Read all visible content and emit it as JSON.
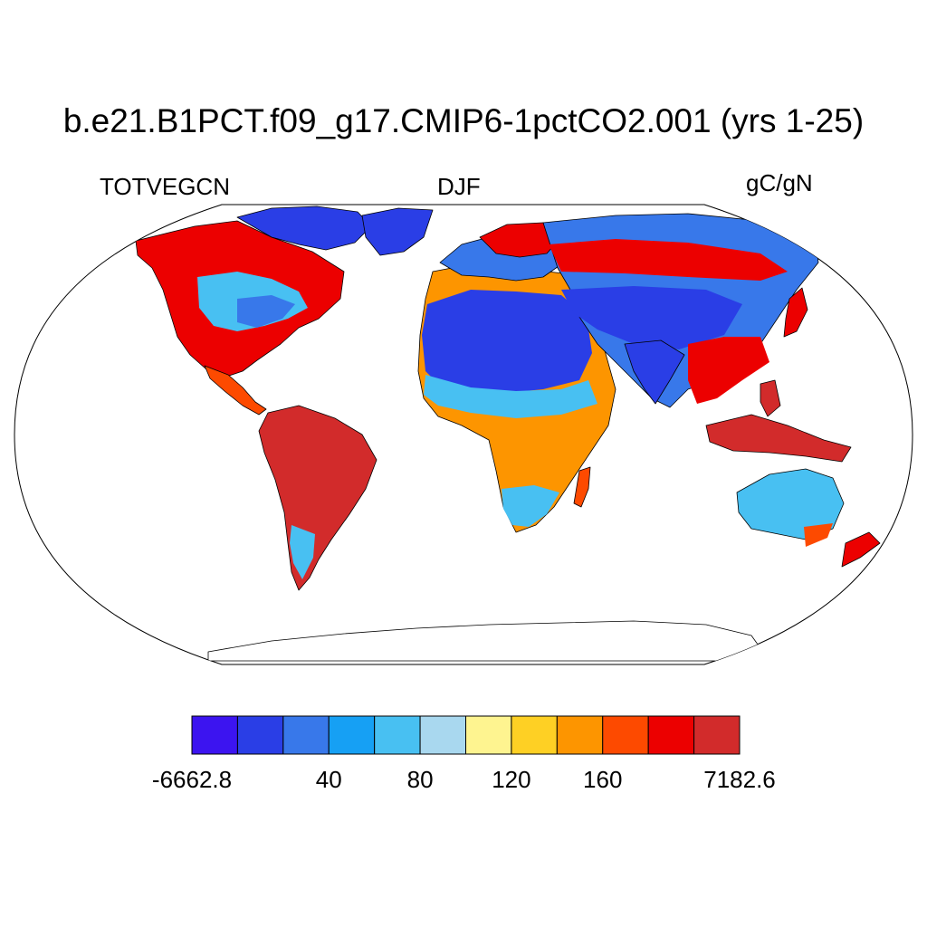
{
  "title": "b.e21.B1PCT.f09_g17.CMIP6-1pctCO2.001 (yrs 1-25)",
  "left_label": "TOTVEGCN",
  "center_label": "DJF",
  "right_label": "gC/gN",
  "colorbar": {
    "colors": [
      "#3c14f0",
      "#2a3ee6",
      "#3878ea",
      "#16a0f4",
      "#48c0f2",
      "#a9d8ef",
      "#fef490",
      "#fed024",
      "#fd9500",
      "#fd4a00",
      "#ec0000",
      "#d22b2b"
    ],
    "tick_labels": [
      {
        "text": "-6662.8",
        "boundary": 0
      },
      {
        "text": "40",
        "boundary": 3
      },
      {
        "text": "80",
        "boundary": 5
      },
      {
        "text": "120",
        "boundary": 7
      },
      {
        "text": "160",
        "boundary": 9
      },
      {
        "text": "7182.6",
        "boundary": 12
      }
    ]
  }
}
